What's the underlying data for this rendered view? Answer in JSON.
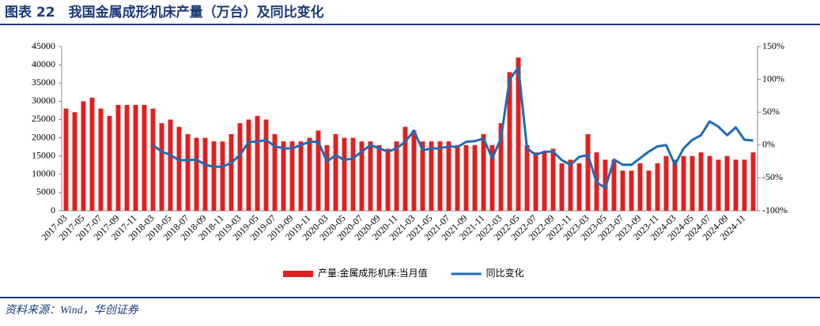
{
  "chart_data": {
    "type": "bar_line",
    "title": "图表 22　我国金属成形机床产量（万台）及同比变化",
    "source": "资料来源：Wind，华创证券",
    "categories": [
      "2017-03",
      null,
      "2017-05",
      null,
      "2017-07",
      null,
      "2017-09",
      null,
      "2017-11",
      null,
      "2018-03",
      null,
      "2018-05",
      null,
      "2018-07",
      null,
      "2018-09",
      null,
      "2018-11",
      null,
      "2019-03",
      null,
      "2019-05",
      null,
      "2019-07",
      null,
      "2019-09",
      null,
      "2019-11",
      null,
      "2020-03",
      null,
      "2020-05",
      null,
      "2020-07",
      null,
      "2020-09",
      null,
      "2020-11",
      null,
      "2021-03",
      null,
      "2021-05",
      null,
      "2021-07",
      null,
      "2021-09",
      null,
      "2021-11",
      null,
      "2022-03",
      null,
      "2022-05",
      null,
      "2022-07",
      null,
      "2022-09",
      null,
      "2022-11",
      null,
      "2023-03",
      null,
      "2023-05",
      null,
      "2023-07",
      null,
      "2023-09",
      null,
      "2023-11",
      null,
      "2024-03",
      null,
      "2024-05",
      null,
      "2024-07",
      null,
      "2024-09",
      null,
      "2024-11",
      null
    ],
    "series": [
      {
        "name": "产量:金属成形机床:当月值",
        "color": "#e0201f",
        "kind": "bar",
        "values": [
          28000,
          27000,
          30000,
          31000,
          28000,
          26000,
          29000,
          29000,
          29000,
          29000,
          28000,
          24000,
          25000,
          23000,
          21000,
          20000,
          20000,
          19000,
          19000,
          21000,
          24000,
          25000,
          26000,
          25000,
          21000,
          19000,
          19000,
          19000,
          20000,
          22000,
          18000,
          21000,
          20000,
          20000,
          19000,
          19000,
          18000,
          17000,
          19000,
          23000,
          22000,
          19000,
          19000,
          19000,
          19000,
          18000,
          18000,
          18000,
          21000,
          18000,
          24000,
          38000,
          42000,
          18000,
          16000,
          16000,
          17000,
          13000,
          14000,
          13000,
          21000,
          16000,
          14000,
          14000,
          11000,
          11000,
          13000,
          11000,
          13000,
          15000,
          14000,
          15000,
          15000,
          16000,
          15000,
          14000,
          15000,
          14000,
          14000,
          16000
        ]
      },
      {
        "name": "同比变化",
        "color": "#1f6cb5",
        "kind": "line",
        "axis": "y2",
        "values": [
          null,
          null,
          null,
          null,
          null,
          null,
          null,
          null,
          null,
          null,
          0,
          -10,
          -15,
          -23,
          -23,
          -22,
          -30,
          -33,
          -33,
          -27,
          -15,
          5,
          5,
          8,
          -2,
          -5,
          -5,
          0,
          5,
          5,
          -25,
          -15,
          -23,
          -20,
          -10,
          0,
          -5,
          -10,
          -5,
          5,
          22,
          -8,
          -5,
          -5,
          -2,
          -3,
          5,
          6,
          10,
          -20,
          10,
          100,
          118,
          -5,
          -15,
          -10,
          -10,
          -23,
          -30,
          -18,
          -15,
          -57,
          -65,
          -22,
          -30,
          -30,
          -20,
          -10,
          -2,
          0,
          -30,
          -5,
          8,
          15,
          36,
          28,
          15,
          27,
          8,
          7
        ]
      }
    ],
    "ylim": [
      0,
      45000
    ],
    "yticks": [
      0,
      5000,
      10000,
      15000,
      20000,
      25000,
      30000,
      35000,
      40000,
      45000
    ],
    "y2lim": [
      -100,
      150
    ],
    "y2ticks": [
      {
        "value": -100,
        "label": "-100%"
      },
      {
        "value": -50,
        "label": "-50%"
      },
      {
        "value": 0,
        "label": "0%"
      },
      {
        "value": 50,
        "label": "50%"
      },
      {
        "value": 100,
        "label": "100%"
      },
      {
        "value": 150,
        "label": "150%"
      }
    ],
    "legend": "bottom"
  }
}
